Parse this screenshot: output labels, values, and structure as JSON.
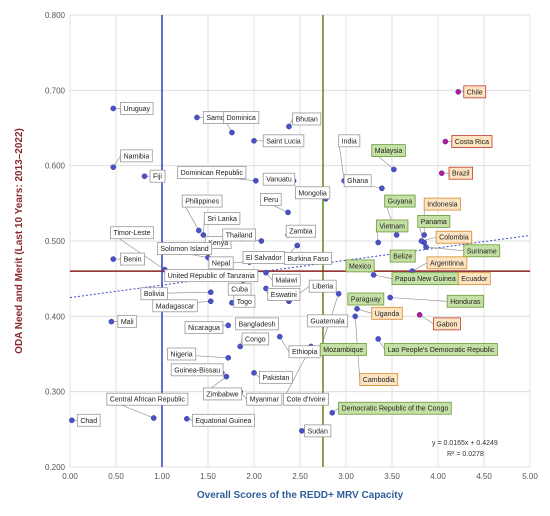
{
  "chart_data": {
    "type": "scatter",
    "title": "",
    "xlabel": "Overall Scores of the REDD+ MRV Capacity",
    "ylabel": "ODA Need and Merit (Last 10 Years: 2013–2022)",
    "xlim": [
      0,
      5
    ],
    "ylim": [
      0.2,
      0.8
    ],
    "x_ticks": [
      "0.00",
      "0.50",
      "1.00",
      "1.50",
      "2.00",
      "2.50",
      "3.00",
      "3.50",
      "4.00",
      "4.50",
      "5.00"
    ],
    "y_ticks": [
      "0.200",
      "0.300",
      "0.400",
      "0.500",
      "0.600",
      "0.700",
      "0.800"
    ],
    "grid": true,
    "reference_lines": {
      "vertical": [
        1.0,
        2.75
      ],
      "horizontal": [
        0.46
      ]
    },
    "trendline": {
      "slope": 0.0165,
      "intercept": 0.4249,
      "equation": "y = 0.0165x + 0.4249",
      "r2": "R² = 0.0278"
    },
    "colors": {
      "point": "#4a52c8",
      "point_highlight": "#b5179e",
      "vline_left": "#3a4bc4",
      "vline_right": "#6b8e23",
      "hline": "#8b2020",
      "trend": "#3a4bc4",
      "label_border": "#999999",
      "green_fill": "#c5e0a5",
      "green_border": "#6b9a3c",
      "orange_fill": "#fde4c2",
      "orange_border": "#d88a2a",
      "red_border": "#c0392b"
    },
    "points": [
      {
        "name": "Chad",
        "x": 0.02,
        "y": 0.262,
        "lx": 0.08,
        "ly": 0.262,
        "style": "plain"
      },
      {
        "name": "Mali",
        "x": 0.45,
        "y": 0.393,
        "lx": 0.52,
        "ly": 0.393,
        "style": "plain"
      },
      {
        "name": "Uruguay",
        "x": 0.47,
        "y": 0.676,
        "lx": 0.55,
        "ly": 0.676,
        "style": "plain"
      },
      {
        "name": "Namibia",
        "x": 0.47,
        "y": 0.598,
        "lx": 0.55,
        "ly": 0.613,
        "style": "plain"
      },
      {
        "name": "Fiji",
        "x": 0.81,
        "y": 0.586,
        "lx": 0.87,
        "ly": 0.586,
        "style": "plain"
      },
      {
        "name": "Benin",
        "x": 0.47,
        "y": 0.476,
        "lx": 0.55,
        "ly": 0.476,
        "style": "plain"
      },
      {
        "name": "Timor-Leste",
        "x": 1.03,
        "y": 0.462,
        "lx": 0.44,
        "ly": 0.511,
        "style": "plain"
      },
      {
        "name": "Central African Republic",
        "x": 0.91,
        "y": 0.265,
        "lx": 0.4,
        "ly": 0.29,
        "style": "plain"
      },
      {
        "name": "Equatorial Guinea",
        "x": 1.27,
        "y": 0.264,
        "lx": 1.33,
        "ly": 0.262,
        "style": "plain"
      },
      {
        "name": "Samoa",
        "x": 1.38,
        "y": 0.664,
        "lx": 1.45,
        "ly": 0.664,
        "style": "plain"
      },
      {
        "name": "Dominica",
        "x": 1.76,
        "y": 0.644,
        "lx": 1.67,
        "ly": 0.664,
        "style": "plain"
      },
      {
        "name": "Bhutan",
        "x": 2.38,
        "y": 0.652,
        "lx": 2.42,
        "ly": 0.662,
        "style": "plain"
      },
      {
        "name": "Saint Lucia",
        "x": 2.0,
        "y": 0.633,
        "lx": 2.1,
        "ly": 0.633,
        "style": "plain"
      },
      {
        "name": "India",
        "x": 2.98,
        "y": 0.58,
        "lx": 2.92,
        "ly": 0.633,
        "style": "plain"
      },
      {
        "name": "Dominican Republic",
        "x": 2.02,
        "y": 0.58,
        "lx": 1.17,
        "ly": 0.591,
        "style": "plain"
      },
      {
        "name": "Vanuatu",
        "x": 2.43,
        "y": 0.58,
        "lx": 2.1,
        "ly": 0.582,
        "style": "plain"
      },
      {
        "name": "Mongolia",
        "x": 2.78,
        "y": 0.556,
        "lx": 2.45,
        "ly": 0.564,
        "style": "plain"
      },
      {
        "name": "Peru",
        "x": 2.37,
        "y": 0.538,
        "lx": 2.07,
        "ly": 0.555,
        "style": "plain"
      },
      {
        "name": "Zambia",
        "x": 2.37,
        "y": 0.508,
        "lx": 2.35,
        "ly": 0.513,
        "style": "plain"
      },
      {
        "name": "Philippines",
        "x": 1.4,
        "y": 0.514,
        "lx": 1.22,
        "ly": 0.553,
        "style": "plain"
      },
      {
        "name": "Sri Lanka",
        "x": 1.45,
        "y": 0.508,
        "lx": 1.46,
        "ly": 0.53,
        "style": "plain"
      },
      {
        "name": "Kenya",
        "x": 1.85,
        "y": 0.503,
        "lx": 1.47,
        "ly": 0.498,
        "style": "plain"
      },
      {
        "name": "Thailand",
        "x": 2.08,
        "y": 0.5,
        "lx": 1.66,
        "ly": 0.508,
        "style": "plain"
      },
      {
        "name": "Solomon Island",
        "x": 1.5,
        "y": 0.478,
        "lx": 0.95,
        "ly": 0.49,
        "style": "plain"
      },
      {
        "name": "Nepal",
        "x": 1.95,
        "y": 0.472,
        "lx": 1.51,
        "ly": 0.471,
        "style": "plain"
      },
      {
        "name": "El Salvador",
        "x": 1.95,
        "y": 0.474,
        "lx": 1.88,
        "ly": 0.478,
        "style": "plain"
      },
      {
        "name": "Burkina Faso",
        "x": 2.47,
        "y": 0.494,
        "lx": 2.33,
        "ly": 0.477,
        "style": "plain"
      },
      {
        "name": "United Republic of Tanzania",
        "x": 1.98,
        "y": 0.452,
        "lx": 1.03,
        "ly": 0.454,
        "style": "plain"
      },
      {
        "name": "Malawi",
        "x": 2.13,
        "y": 0.458,
        "lx": 2.2,
        "ly": 0.448,
        "style": "plain"
      },
      {
        "name": "Cuba",
        "x": 1.88,
        "y": 0.442,
        "lx": 1.72,
        "ly": 0.436,
        "style": "plain"
      },
      {
        "name": "Eswatini",
        "x": 2.13,
        "y": 0.437,
        "lx": 2.15,
        "ly": 0.429,
        "style": "plain"
      },
      {
        "name": "Bolivia",
        "x": 1.53,
        "y": 0.432,
        "lx": 0.77,
        "ly": 0.43,
        "style": "plain"
      },
      {
        "name": "Madagascar",
        "x": 1.53,
        "y": 0.42,
        "lx": 0.9,
        "ly": 0.414,
        "style": "plain"
      },
      {
        "name": "Togo",
        "x": 1.76,
        "y": 0.418,
        "lx": 1.78,
        "ly": 0.42,
        "style": "plain"
      },
      {
        "name": "Liberia",
        "x": 2.38,
        "y": 0.42,
        "lx": 2.6,
        "ly": 0.44,
        "style": "plain"
      },
      {
        "name": "Nicaragua",
        "x": 1.72,
        "y": 0.388,
        "lx": 1.25,
        "ly": 0.385,
        "style": "plain"
      },
      {
        "name": "Bangladesh",
        "x": 1.98,
        "y": 0.394,
        "lx": 1.8,
        "ly": 0.39,
        "style": "plain"
      },
      {
        "name": "Guatemala",
        "x": 2.7,
        "y": 0.395,
        "lx": 2.58,
        "ly": 0.394,
        "style": "plain"
      },
      {
        "name": "Congo",
        "x": 1.85,
        "y": 0.36,
        "lx": 1.87,
        "ly": 0.37,
        "style": "plain"
      },
      {
        "name": "Nigeria",
        "x": 1.72,
        "y": 0.345,
        "lx": 1.06,
        "ly": 0.35,
        "style": "plain"
      },
      {
        "name": "Guinea-Bissau",
        "x": 1.65,
        "y": 0.325,
        "lx": 1.1,
        "ly": 0.329,
        "style": "plain"
      },
      {
        "name": "Ethiopia",
        "x": 2.28,
        "y": 0.373,
        "lx": 2.38,
        "ly": 0.353,
        "style": "plain"
      },
      {
        "name": "Zimbabwe",
        "x": 1.7,
        "y": 0.32,
        "lx": 1.45,
        "ly": 0.297,
        "style": "plain"
      },
      {
        "name": "Pakistan",
        "x": 2.0,
        "y": 0.325,
        "lx": 2.06,
        "ly": 0.319,
        "style": "plain"
      },
      {
        "name": "Myanmar",
        "x": 1.85,
        "y": 0.3,
        "lx": 1.92,
        "ly": 0.29,
        "style": "plain"
      },
      {
        "name": "Cote d'Ivoire",
        "x": 2.62,
        "y": 0.36,
        "lx": 2.32,
        "ly": 0.29,
        "style": "plain"
      },
      {
        "name": "Sudan",
        "x": 2.52,
        "y": 0.248,
        "lx": 2.55,
        "ly": 0.248,
        "style": "plain"
      },
      {
        "name": "Chile",
        "x": 4.22,
        "y": 0.698,
        "lx": 4.28,
        "ly": 0.698,
        "style": "orange-red"
      },
      {
        "name": "Costa Rica",
        "x": 4.08,
        "y": 0.632,
        "lx": 4.15,
        "ly": 0.632,
        "style": "orange-red"
      },
      {
        "name": "Brazil",
        "x": 4.04,
        "y": 0.59,
        "lx": 4.12,
        "ly": 0.59,
        "style": "orange-red"
      },
      {
        "name": "Malaysia",
        "x": 3.52,
        "y": 0.595,
        "lx": 3.28,
        "ly": 0.62,
        "style": "green"
      },
      {
        "name": "Ghana",
        "x": 3.39,
        "y": 0.57,
        "lx": 2.98,
        "ly": 0.58,
        "style": "plain"
      },
      {
        "name": "Guyana",
        "x": 3.55,
        "y": 0.508,
        "lx": 3.42,
        "ly": 0.553,
        "style": "green"
      },
      {
        "name": "Indonesia",
        "x": 3.85,
        "y": 0.508,
        "lx": 3.85,
        "ly": 0.549,
        "style": "orange"
      },
      {
        "name": "Panama",
        "x": 3.85,
        "y": 0.498,
        "lx": 3.78,
        "ly": 0.526,
        "style": "green"
      },
      {
        "name": "Vietnam",
        "x": 3.35,
        "y": 0.498,
        "lx": 3.33,
        "ly": 0.52,
        "style": "green"
      },
      {
        "name": "Colombia",
        "x": 3.82,
        "y": 0.5,
        "lx": 3.98,
        "ly": 0.505,
        "style": "orange"
      },
      {
        "name": "Suriname",
        "x": 3.87,
        "y": 0.492,
        "lx": 4.28,
        "ly": 0.487,
        "style": "green"
      },
      {
        "name": "Belize",
        "x": 3.52,
        "y": 0.478,
        "lx": 3.48,
        "ly": 0.48,
        "style": "green"
      },
      {
        "name": "Argentinna",
        "x": 3.72,
        "y": 0.46,
        "lx": 3.88,
        "ly": 0.471,
        "style": "orange"
      },
      {
        "name": "Mexico",
        "x": 3.25,
        "y": 0.462,
        "lx": 3.0,
        "ly": 0.467,
        "style": "green"
      },
      {
        "name": "Papua New Guinea",
        "x": 3.3,
        "y": 0.455,
        "lx": 3.5,
        "ly": 0.45,
        "style": "green"
      },
      {
        "name": "Ecuador",
        "x": 3.7,
        "y": 0.45,
        "lx": 4.22,
        "ly": 0.45,
        "style": "orange"
      },
      {
        "name": "Paraguay",
        "x": 3.05,
        "y": 0.42,
        "lx": 3.02,
        "ly": 0.423,
        "style": "green"
      },
      {
        "name": "Honduras",
        "x": 3.48,
        "y": 0.425,
        "lx": 4.1,
        "ly": 0.42,
        "style": "green"
      },
      {
        "name": "Uganda",
        "x": 3.12,
        "y": 0.41,
        "lx": 3.28,
        "ly": 0.404,
        "style": "orange"
      },
      {
        "name": "Gabon",
        "x": 3.8,
        "y": 0.402,
        "lx": 3.95,
        "ly": 0.39,
        "style": "orange-red"
      },
      {
        "name": "Lao People's Democratic Republic",
        "x": 3.35,
        "y": 0.37,
        "lx": 3.42,
        "ly": 0.356,
        "style": "green"
      },
      {
        "name": "Mozambique",
        "x": 2.92,
        "y": 0.43,
        "lx": 2.72,
        "ly": 0.356,
        "style": "green"
      },
      {
        "name": "Cambodia",
        "x": 3.1,
        "y": 0.4,
        "lx": 3.15,
        "ly": 0.316,
        "style": "orange"
      },
      {
        "name": "Democratic Republic of the Congo",
        "x": 2.85,
        "y": 0.272,
        "lx": 2.92,
        "ly": 0.278,
        "style": "green"
      }
    ]
  }
}
